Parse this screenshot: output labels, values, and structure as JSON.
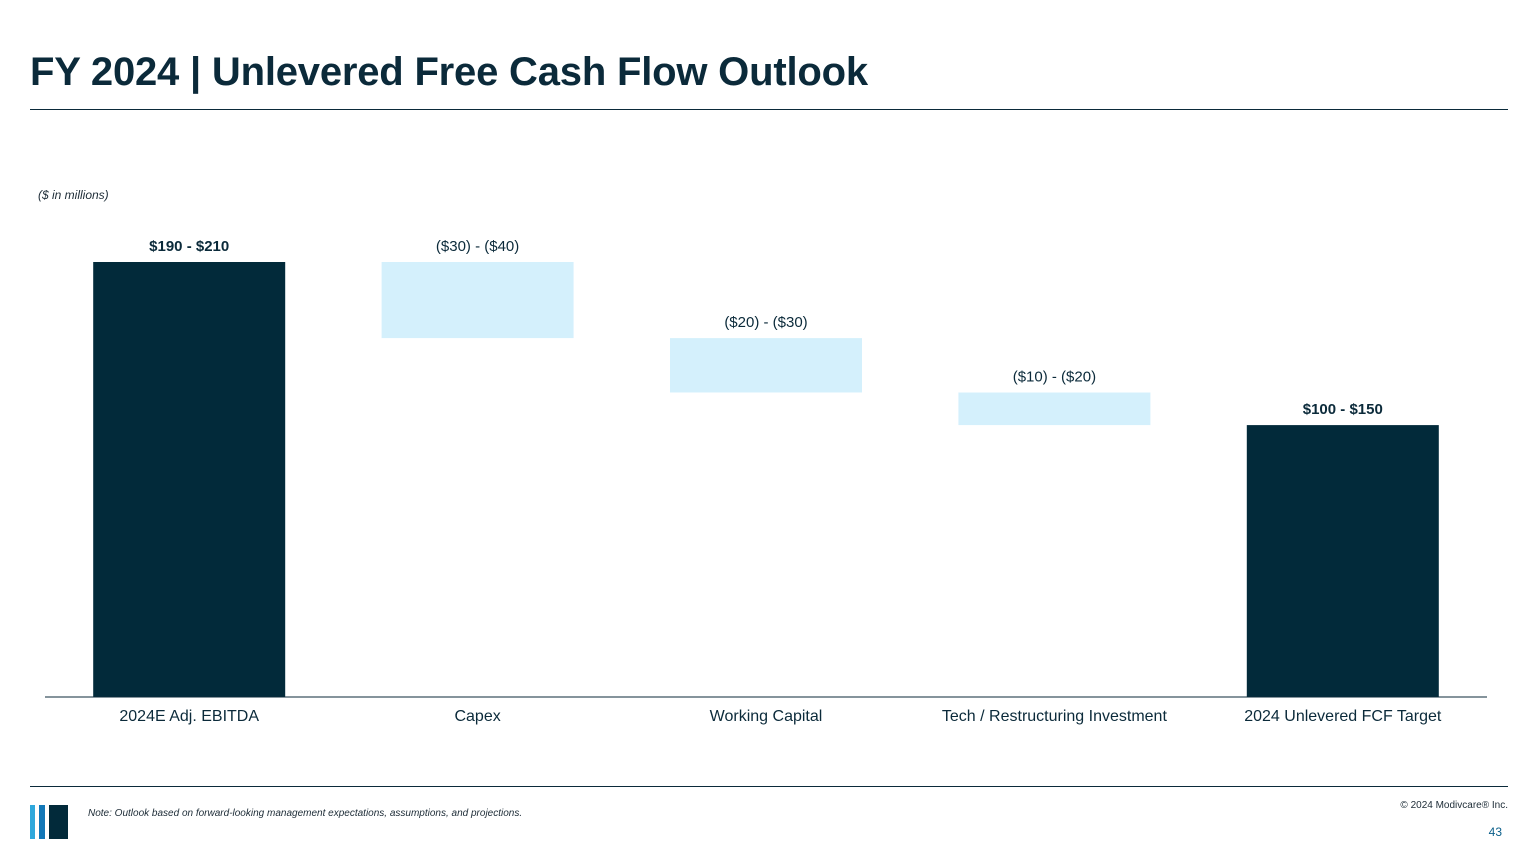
{
  "page": {
    "title": "FY 2024 | Unlevered Free Cash Flow Outlook",
    "units_note": "($ in millions)",
    "footnote": "Note: Outlook based on forward-looking management expectations, assumptions, and projections.",
    "copyright": "© 2024 Modivcare® Inc.",
    "page_number": "43",
    "logo_icon": "modivcare-bars-logo"
  },
  "colors": {
    "total_bar": "#022A3A",
    "delta_bar": "#D4F0FC",
    "axis": "#0b2a3a",
    "text": "#0b2a3a"
  },
  "chart_data": {
    "type": "bar",
    "subtype": "waterfall",
    "categories": [
      "2024E Adj. EBITDA",
      "Capex",
      "Working Capital",
      "Tech / Restructuring Investment",
      "2024 Unlevered FCF Target"
    ],
    "bars": [
      {
        "category": "2024E Adj. EBITDA",
        "kind": "total",
        "label": "$190 - $210",
        "label_bold": true,
        "start": 0,
        "end": 200
      },
      {
        "category": "Capex",
        "kind": "delta",
        "label": "($30) - ($40)",
        "label_bold": false,
        "start": 200,
        "end": 165
      },
      {
        "category": "Working Capital",
        "kind": "delta",
        "label": "($20) - ($30)",
        "label_bold": false,
        "start": 165,
        "end": 140
      },
      {
        "category": "Tech / Restructuring Investment",
        "kind": "delta",
        "label": "($10) - ($20)",
        "label_bold": false,
        "start": 140,
        "end": 125
      },
      {
        "category": "2024 Unlevered FCF Target",
        "kind": "total",
        "label": "$100 - $150",
        "label_bold": true,
        "start": 0,
        "end": 125
      }
    ],
    "ylim": [
      0,
      200
    ],
    "grid": false,
    "legend": "none"
  }
}
